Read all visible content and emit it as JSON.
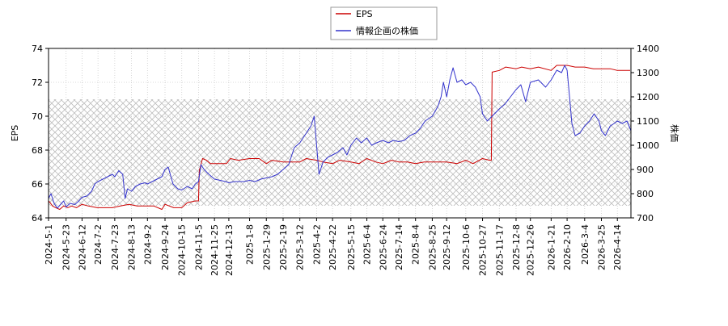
{
  "chart_data": {
    "type": "line",
    "legend": {
      "position": "top-center",
      "entries": [
        "EPS",
        "情報企画の株価"
      ]
    },
    "grid": true,
    "hatched_band_right_axis": [
      750,
      1190
    ],
    "x_tick_labels": [
      "2024-5-1",
      "2024-5-23",
      "2024-6-12",
      "2024-7-2",
      "2024-7-23",
      "2024-8-13",
      "2024-9-2",
      "2024-9-24",
      "2024-10-15",
      "2024-11-5",
      "2024-11-25",
      "2024-12-13",
      "2025-1-8",
      "2025-1-29",
      "2025-2-19",
      "2025-3-12",
      "2025-4-2",
      "2025-4-22",
      "2025-5-15",
      "2025-6-4",
      "2025-6-24",
      "2025-7-14",
      "2025-8-4",
      "2025-8-25",
      "2025-9-12",
      "2025-10-6",
      "2025-10-27",
      "2025-11-17",
      "2025-12-8",
      "2025-12-26",
      "2026-1-21",
      "2026-2-10",
      "2026-3-4",
      "2026-3-25",
      "2026-4-14"
    ],
    "x_range": [
      "2024-5-1",
      "2026-5-1"
    ],
    "y_left": {
      "label": "EPS",
      "range": [
        64,
        74
      ],
      "ticks": [
        "64",
        "66",
        "68",
        "70",
        "72",
        "74"
      ]
    },
    "y_right": {
      "label": "株価",
      "range": [
        700,
        1400
      ],
      "ticks": [
        "700",
        "800",
        "900",
        "1000",
        "1100",
        "1200",
        "1300",
        "1400"
      ]
    },
    "series": [
      {
        "name": "EPS",
        "axis": "left",
        "color": "#cc0000",
        "points": [
          [
            "2024-5-1",
            65.0
          ],
          [
            "2024-5-3",
            64.9
          ],
          [
            "2024-5-6",
            64.7
          ],
          [
            "2024-5-10",
            64.6
          ],
          [
            "2024-5-15",
            64.5
          ],
          [
            "2024-5-20",
            64.7
          ],
          [
            "2024-5-25",
            64.6
          ],
          [
            "2024-5-30",
            64.7
          ],
          [
            "2024-6-5",
            64.6
          ],
          [
            "2024-6-12",
            64.8
          ],
          [
            "2024-6-20",
            64.7
          ],
          [
            "2024-7-1",
            64.6
          ],
          [
            "2024-7-10",
            64.6
          ],
          [
            "2024-7-20",
            64.6
          ],
          [
            "2024-7-30",
            64.7
          ],
          [
            "2024-8-10",
            64.8
          ],
          [
            "2024-8-20",
            64.7
          ],
          [
            "2024-8-30",
            64.7
          ],
          [
            "2024-9-10",
            64.7
          ],
          [
            "2024-9-20",
            64.5
          ],
          [
            "2024-9-24",
            64.8
          ],
          [
            "2024-10-5",
            64.6
          ],
          [
            "2024-10-15",
            64.6
          ],
          [
            "2024-10-22",
            64.9
          ],
          [
            "2024-11-1",
            65.0
          ],
          [
            "2024-11-5",
            65.0
          ],
          [
            "2024-11-6",
            66.8
          ],
          [
            "2024-11-10",
            67.5
          ],
          [
            "2024-11-15",
            67.4
          ],
          [
            "2024-11-20",
            67.2
          ],
          [
            "2024-12-1",
            67.2
          ],
          [
            "2024-12-10",
            67.2
          ],
          [
            "2024-12-15",
            67.5
          ],
          [
            "2024-12-25",
            67.4
          ],
          [
            "2025-1-8",
            67.5
          ],
          [
            "2025-1-20",
            67.5
          ],
          [
            "2025-1-29",
            67.2
          ],
          [
            "2025-2-5",
            67.4
          ],
          [
            "2025-2-19",
            67.3
          ],
          [
            "2025-3-1",
            67.3
          ],
          [
            "2025-3-12",
            67.3
          ],
          [
            "2025-3-20",
            67.5
          ],
          [
            "2025-4-2",
            67.4
          ],
          [
            "2025-4-10",
            67.3
          ],
          [
            "2025-4-22",
            67.2
          ],
          [
            "2025-5-1",
            67.4
          ],
          [
            "2025-5-15",
            67.3
          ],
          [
            "2025-5-25",
            67.2
          ],
          [
            "2025-6-4",
            67.5
          ],
          [
            "2025-6-15",
            67.3
          ],
          [
            "2025-6-24",
            67.2
          ],
          [
            "2025-7-5",
            67.4
          ],
          [
            "2025-7-14",
            67.3
          ],
          [
            "2025-7-25",
            67.3
          ],
          [
            "2025-8-4",
            67.2
          ],
          [
            "2025-8-15",
            67.3
          ],
          [
            "2025-8-25",
            67.3
          ],
          [
            "2025-9-5",
            67.3
          ],
          [
            "2025-9-12",
            67.3
          ],
          [
            "2025-9-25",
            67.2
          ],
          [
            "2025-10-6",
            67.4
          ],
          [
            "2025-10-15",
            67.2
          ],
          [
            "2025-10-27",
            67.5
          ],
          [
            "2025-11-5",
            67.4
          ],
          [
            "2025-11-7",
            67.4
          ],
          [
            "2025-11-8",
            72.6
          ],
          [
            "2025-11-17",
            72.7
          ],
          [
            "2025-11-25",
            72.9
          ],
          [
            "2025-12-8",
            72.8
          ],
          [
            "2025-12-15",
            72.9
          ],
          [
            "2025-12-26",
            72.8
          ],
          [
            "2026-1-5",
            72.9
          ],
          [
            "2026-1-21",
            72.7
          ],
          [
            "2026-1-28",
            73.0
          ],
          [
            "2026-2-10",
            73.0
          ],
          [
            "2026-2-20",
            72.9
          ],
          [
            "2026-3-4",
            72.9
          ],
          [
            "2026-3-15",
            72.8
          ],
          [
            "2026-3-25",
            72.8
          ],
          [
            "2026-4-5",
            72.8
          ],
          [
            "2026-4-14",
            72.7
          ],
          [
            "2026-4-30",
            72.7
          ]
        ]
      },
      {
        "name": "情報企画の株価",
        "axis": "right",
        "color": "#3333cc",
        "points": [
          [
            "2024-5-1",
            780
          ],
          [
            "2024-5-4",
            800
          ],
          [
            "2024-5-8",
            760
          ],
          [
            "2024-5-12",
            740
          ],
          [
            "2024-5-16",
            755
          ],
          [
            "2024-5-20",
            770
          ],
          [
            "2024-5-23",
            745
          ],
          [
            "2024-5-28",
            760
          ],
          [
            "2024-6-3",
            755
          ],
          [
            "2024-6-8",
            770
          ],
          [
            "2024-6-12",
            785
          ],
          [
            "2024-6-18",
            790
          ],
          [
            "2024-6-24",
            810
          ],
          [
            "2024-6-28",
            840
          ],
          [
            "2024-7-2",
            850
          ],
          [
            "2024-7-8",
            860
          ],
          [
            "2024-7-14",
            870
          ],
          [
            "2024-7-20",
            880
          ],
          [
            "2024-7-23",
            870
          ],
          [
            "2024-7-28",
            895
          ],
          [
            "2024-8-2",
            880
          ],
          [
            "2024-8-5",
            780
          ],
          [
            "2024-8-8",
            820
          ],
          [
            "2024-8-13",
            810
          ],
          [
            "2024-8-18",
            830
          ],
          [
            "2024-8-24",
            840
          ],
          [
            "2024-8-30",
            845
          ],
          [
            "2024-9-2",
            840
          ],
          [
            "2024-9-8",
            850
          ],
          [
            "2024-9-14",
            860
          ],
          [
            "2024-9-20",
            870
          ],
          [
            "2024-9-24",
            900
          ],
          [
            "2024-9-28",
            910
          ],
          [
            "2024-10-4",
            840
          ],
          [
            "2024-10-10",
            820
          ],
          [
            "2024-10-15",
            815
          ],
          [
            "2024-10-22",
            830
          ],
          [
            "2024-10-28",
            820
          ],
          [
            "2024-11-1",
            840
          ],
          [
            "2024-11-5",
            850
          ],
          [
            "2024-11-8",
            920
          ],
          [
            "2024-11-12",
            900
          ],
          [
            "2024-11-18",
            880
          ],
          [
            "2024-11-25",
            860
          ],
          [
            "2024-12-2",
            855
          ],
          [
            "2024-12-9",
            850
          ],
          [
            "2024-12-13",
            845
          ],
          [
            "2024-12-20",
            850
          ],
          [
            "2025-1-1",
            850
          ],
          [
            "2025-1-8",
            855
          ],
          [
            "2025-1-15",
            850
          ],
          [
            "2025-1-22",
            860
          ],
          [
            "2025-1-29",
            865
          ],
          [
            "2025-2-5",
            870
          ],
          [
            "2025-2-12",
            880
          ],
          [
            "2025-2-19",
            900
          ],
          [
            "2025-2-26",
            920
          ],
          [
            "2025-3-5",
            990
          ],
          [
            "2025-3-12",
            1010
          ],
          [
            "2025-3-20",
            1050
          ],
          [
            "2025-3-26",
            1080
          ],
          [
            "2025-3-30",
            1120
          ],
          [
            "2025-4-2",
            1000
          ],
          [
            "2025-4-5",
            880
          ],
          [
            "2025-4-10",
            930
          ],
          [
            "2025-4-16",
            950
          ],
          [
            "2025-4-22",
            960
          ],
          [
            "2025-4-28",
            970
          ],
          [
            "2025-5-5",
            990
          ],
          [
            "2025-5-10",
            960
          ],
          [
            "2025-5-15",
            1000
          ],
          [
            "2025-5-22",
            1030
          ],
          [
            "2025-5-28",
            1010
          ],
          [
            "2025-6-4",
            1030
          ],
          [
            "2025-6-10",
            1000
          ],
          [
            "2025-6-16",
            1010
          ],
          [
            "2025-6-24",
            1020
          ],
          [
            "2025-7-1",
            1010
          ],
          [
            "2025-7-7",
            1020
          ],
          [
            "2025-7-14",
            1015
          ],
          [
            "2025-7-21",
            1020
          ],
          [
            "2025-7-28",
            1040
          ],
          [
            "2025-8-4",
            1050
          ],
          [
            "2025-8-10",
            1070
          ],
          [
            "2025-8-16",
            1100
          ],
          [
            "2025-8-25",
            1120
          ],
          [
            "2025-9-1",
            1160
          ],
          [
            "2025-9-5",
            1200
          ],
          [
            "2025-9-8",
            1260
          ],
          [
            "2025-9-12",
            1200
          ],
          [
            "2025-9-16",
            1270
          ],
          [
            "2025-9-20",
            1320
          ],
          [
            "2025-9-25",
            1260
          ],
          [
            "2025-10-1",
            1270
          ],
          [
            "2025-10-6",
            1250
          ],
          [
            "2025-10-12",
            1260
          ],
          [
            "2025-10-18",
            1240
          ],
          [
            "2025-10-24",
            1200
          ],
          [
            "2025-10-27",
            1130
          ],
          [
            "2025-11-2",
            1100
          ],
          [
            "2025-11-8",
            1120
          ],
          [
            "2025-11-17",
            1150
          ],
          [
            "2025-11-24",
            1170
          ],
          [
            "2025-12-1",
            1200
          ],
          [
            "2025-12-8",
            1230
          ],
          [
            "2025-12-14",
            1250
          ],
          [
            "2025-12-20",
            1180
          ],
          [
            "2025-12-26",
            1260
          ],
          [
            "2026-1-5",
            1270
          ],
          [
            "2026-1-14",
            1240
          ],
          [
            "2026-1-21",
            1270
          ],
          [
            "2026-1-28",
            1310
          ],
          [
            "2026-2-3",
            1300
          ],
          [
            "2026-2-7",
            1330
          ],
          [
            "2026-2-10",
            1310
          ],
          [
            "2026-2-13",
            1200
          ],
          [
            "2026-2-16",
            1090
          ],
          [
            "2026-2-20",
            1040
          ],
          [
            "2026-2-26",
            1050
          ],
          [
            "2026-3-4",
            1080
          ],
          [
            "2026-3-10",
            1100
          ],
          [
            "2026-3-16",
            1130
          ],
          [
            "2026-3-22",
            1100
          ],
          [
            "2026-3-25",
            1060
          ],
          [
            "2026-3-30",
            1040
          ],
          [
            "2026-4-5",
            1080
          ],
          [
            "2026-4-10",
            1090
          ],
          [
            "2026-4-14",
            1100
          ],
          [
            "2026-4-20",
            1090
          ],
          [
            "2026-4-26",
            1100
          ],
          [
            "2026-5-1",
            1060
          ]
        ]
      }
    ]
  }
}
